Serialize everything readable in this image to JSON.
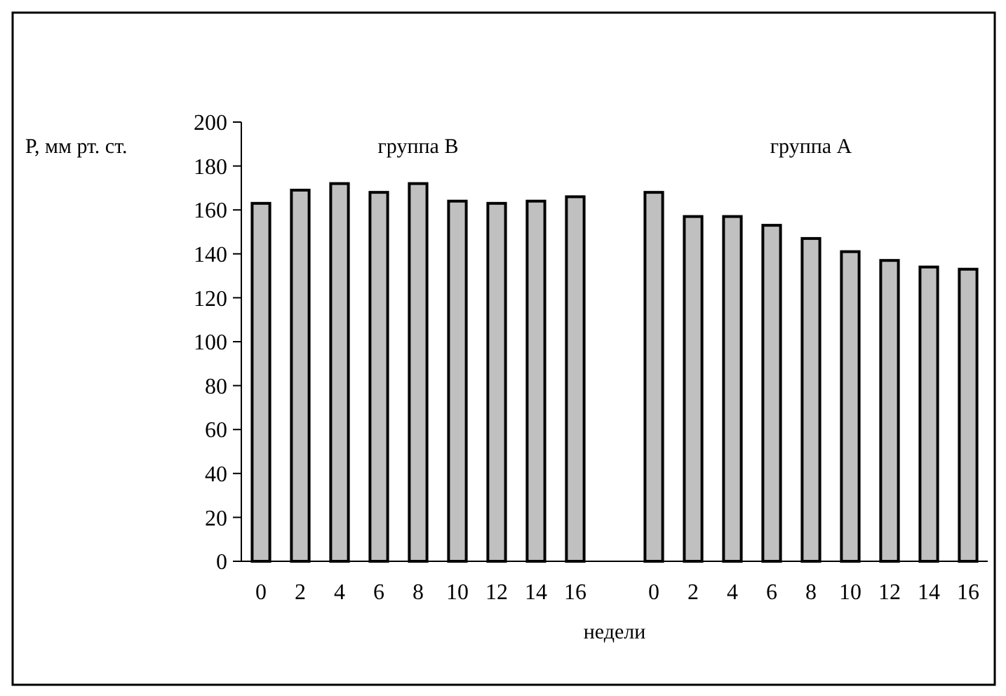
{
  "chart_data": {
    "type": "bar",
    "ylabel": "Р, мм рт. ст.",
    "xlabel": "недели",
    "categories": [
      "0",
      "2",
      "4",
      "6",
      "8",
      "10",
      "12",
      "14",
      "16",
      null,
      "0",
      "2",
      "4",
      "6",
      "8",
      "10",
      "12",
      "14",
      "16"
    ],
    "values": [
      163,
      169,
      172,
      168,
      172,
      164,
      163,
      164,
      166,
      null,
      168,
      157,
      157,
      153,
      147,
      141,
      137,
      134,
      133
    ],
    "color": "#c0c0c0",
    "ylim": [
      0,
      200
    ],
    "yticks": [
      0,
      20,
      40,
      60,
      80,
      100,
      120,
      140,
      160,
      180,
      200
    ],
    "annotations": [
      "группа В",
      "группа А"
    ],
    "grid": false
  }
}
